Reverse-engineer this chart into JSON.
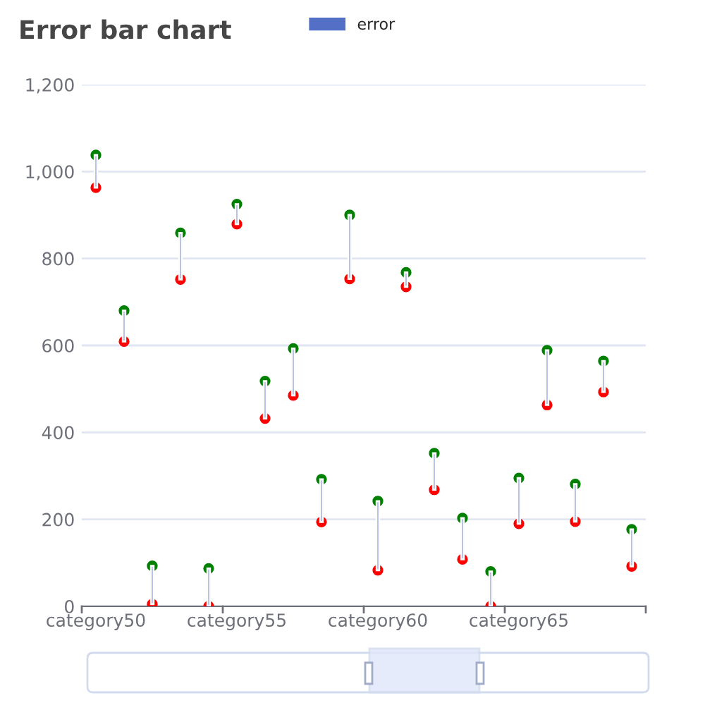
{
  "chart_data": {
    "type": "bar",
    "title": "Error bar chart",
    "categories": [
      "category50",
      null,
      null,
      null,
      null,
      "category55",
      null,
      null,
      null,
      null,
      "category60",
      null,
      null,
      null,
      null,
      "category65",
      null,
      null,
      null,
      null
    ],
    "series": [
      {
        "name": "error",
        "color": "#5470c6",
        "base": [
          963,
          609,
          5,
          752,
          0,
          879,
          432,
          485,
          194,
          753,
          83,
          735,
          268,
          108,
          0,
          190,
          463,
          195,
          493,
          92
        ],
        "values": [
          75,
          71,
          88,
          107,
          87,
          46,
          86,
          108,
          98,
          147,
          159,
          33,
          84,
          95,
          80,
          105,
          126,
          86,
          71,
          85
        ]
      },
      {
        "type": "scatter",
        "color": "#ff0000",
        "values": [
          963,
          609,
          5,
          752,
          0,
          879,
          432,
          485,
          194,
          753,
          83,
          735,
          268,
          108,
          0,
          190,
          463,
          195,
          493,
          92
        ]
      },
      {
        "type": "scatter",
        "color": "#008000",
        "values": [
          1038,
          680,
          93,
          859,
          87,
          925,
          518,
          593,
          292,
          900,
          242,
          768,
          352,
          203,
          80,
          295,
          589,
          281,
          564,
          177
        ]
      }
    ],
    "ylim": [
      0,
      1200
    ],
    "yticks": [
      0,
      {
        "value": 200,
        "label": "200"
      },
      {
        "value": 400,
        "label": "400"
      },
      {
        "value": 600,
        "label": "600"
      },
      {
        "value": 800,
        "label": "800"
      },
      {
        "value": 1000,
        "label": "1,000"
      },
      {
        "value": 1200,
        "label": "1,200"
      }
    ],
    "grid": "y",
    "legend": "top",
    "marker": "circle"
  }
}
